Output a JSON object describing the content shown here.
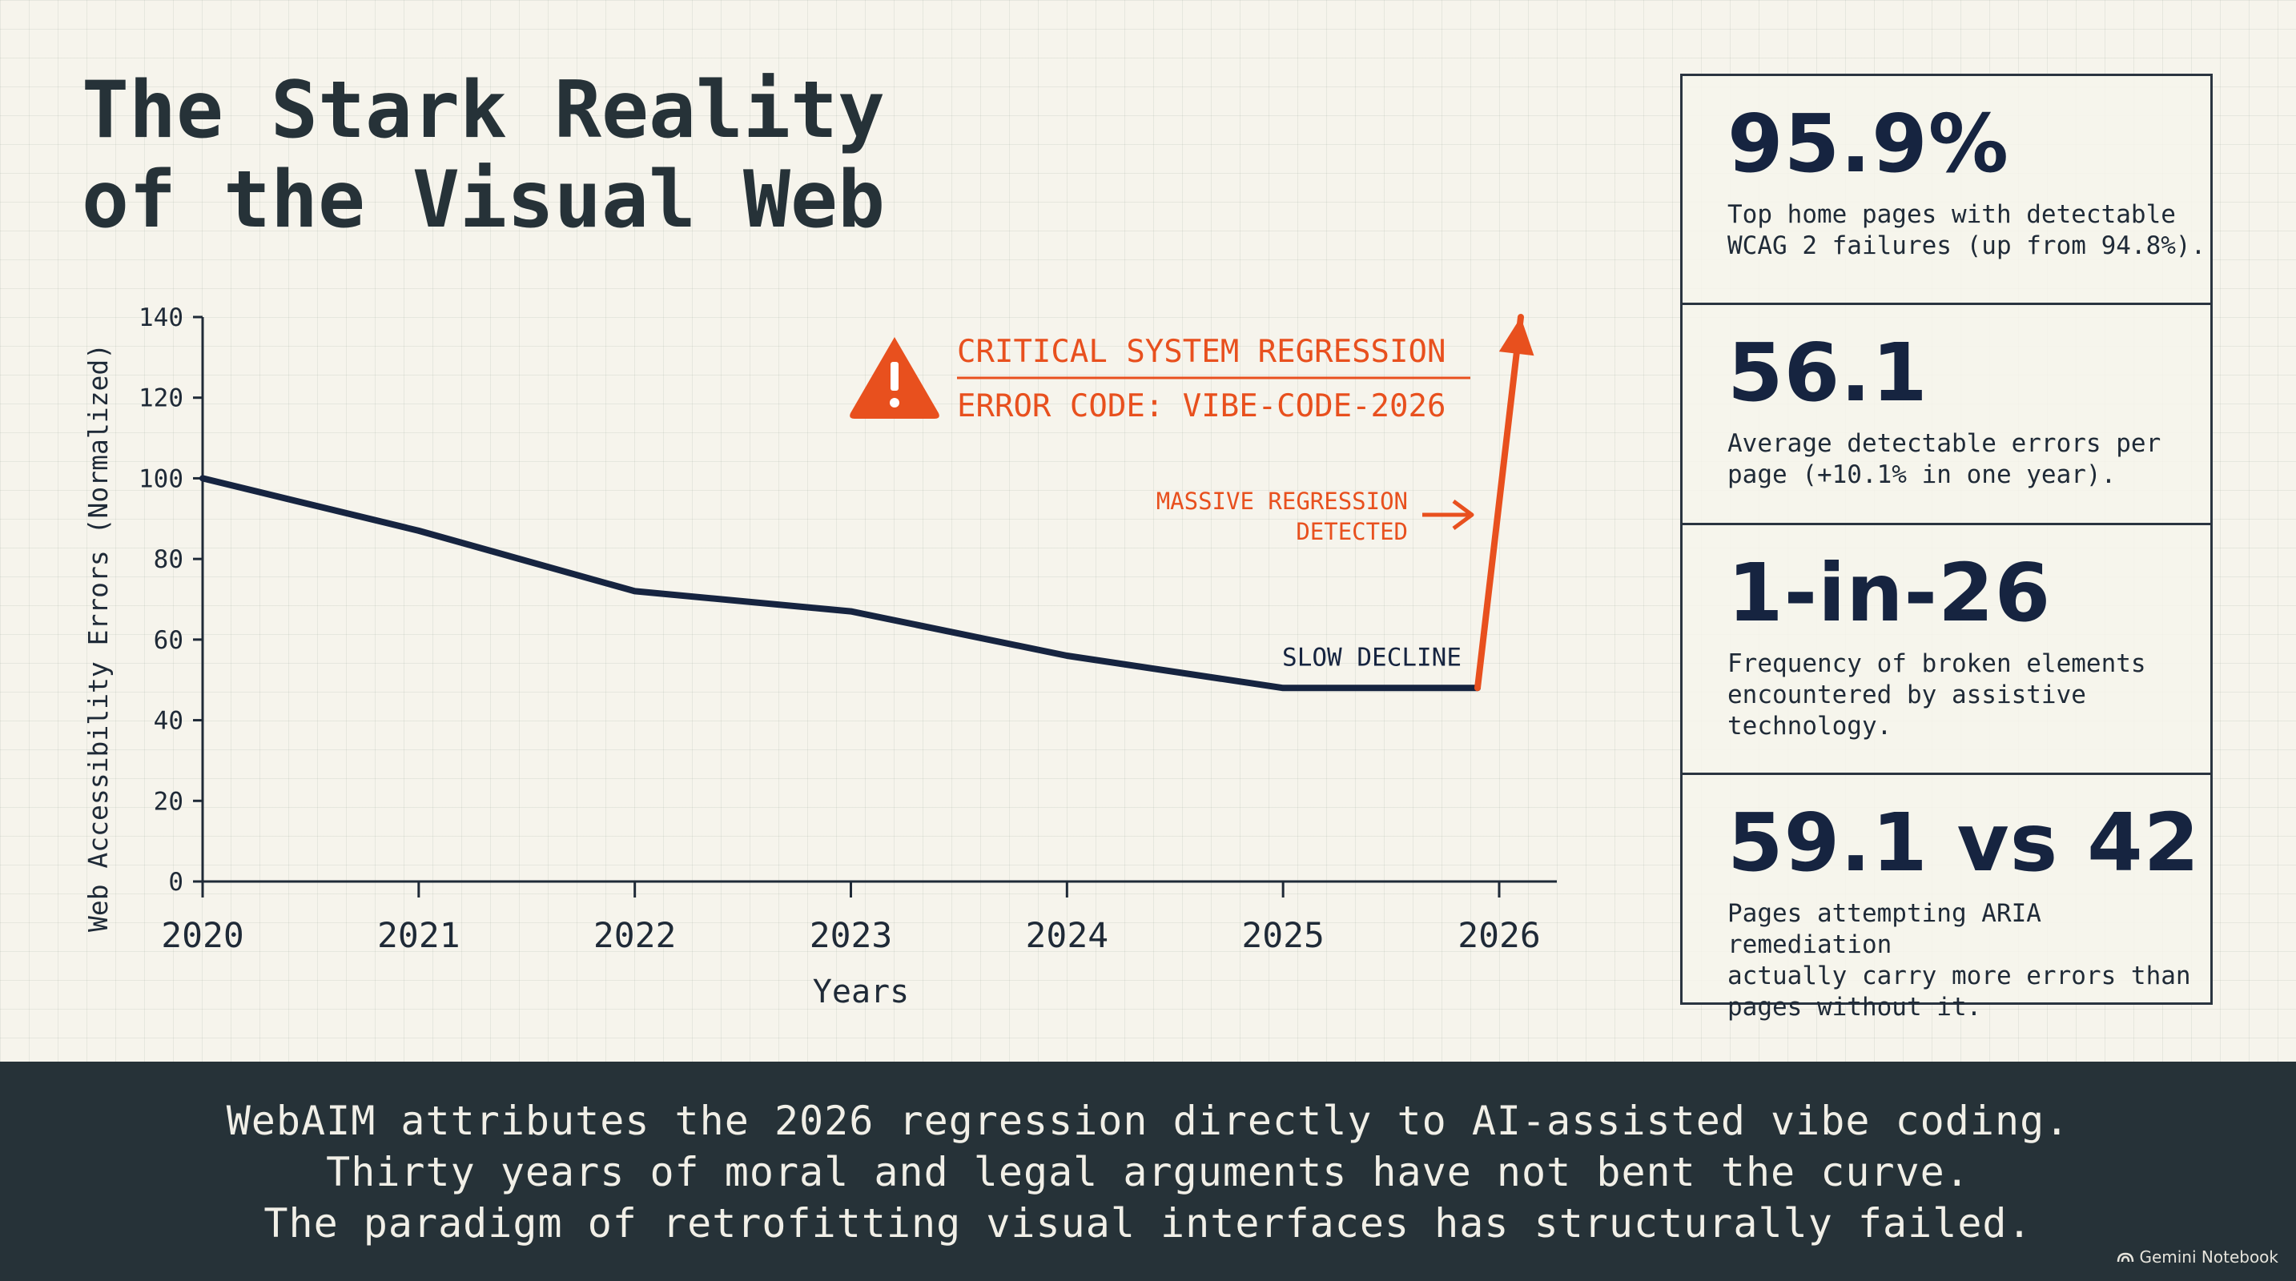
{
  "title": {
    "line1": "The Stark Reality",
    "line2": "of the Visual Web"
  },
  "chart_data": {
    "type": "line",
    "ylabel": "Web Accessibility Errors (Normalized)",
    "xlabel": "Years",
    "ylim": [
      0,
      140
    ],
    "yticks": [
      0,
      20,
      40,
      60,
      80,
      100,
      120,
      140
    ],
    "xlim": [
      2020,
      2026
    ],
    "xticks": [
      2020,
      2021,
      2022,
      2023,
      2024,
      2025,
      2026
    ],
    "grid": true,
    "series": [
      {
        "values": [
          [
            2020,
            100
          ],
          [
            2021,
            87
          ],
          [
            2022,
            72
          ],
          [
            2023,
            67
          ],
          [
            2024,
            56
          ],
          [
            2025,
            48
          ],
          [
            2025.9,
            48
          ]
        ],
        "color": "#162440"
      },
      {
        "values": [
          [
            2025.9,
            48
          ],
          [
            2026.1,
            140
          ]
        ],
        "color": "#e8501e"
      }
    ],
    "annotations": {
      "slow_decline": "SLOW DECLINE",
      "massive_regression": [
        "MASSIVE REGRESSION",
        "DETECTED"
      ],
      "warning_title": "CRITICAL SYSTEM REGRESSION",
      "warning_code": "ERROR CODE: VIBE-CODE-2026"
    },
    "colors": {
      "decline": "#162440",
      "regression": "#e8501e",
      "axis": "#1f2a37"
    }
  },
  "stats": [
    {
      "value": "95.9%",
      "desc": "Top home pages with detectable\nWCAG 2 failures (up from 94.8%)."
    },
    {
      "value": "56.1",
      "desc": "Average detectable errors per\npage (+10.1% in one year)."
    },
    {
      "value": "1-in-26",
      "desc": "Frequency of broken elements\nencountered by assistive\ntechnology."
    },
    {
      "value": "59.1 vs 42",
      "desc": "Pages attempting ARIA remediation\nactually carry more errors than\npages without it."
    }
  ],
  "footer": {
    "lines": [
      "WebAIM attributes the 2026 regression directly to AI-assisted vibe coding.",
      "Thirty years of moral and legal arguments have not bent the curve.",
      "The paradigm of retrofitting visual interfaces has structurally failed."
    ],
    "badge": "Gemini Notebook"
  }
}
